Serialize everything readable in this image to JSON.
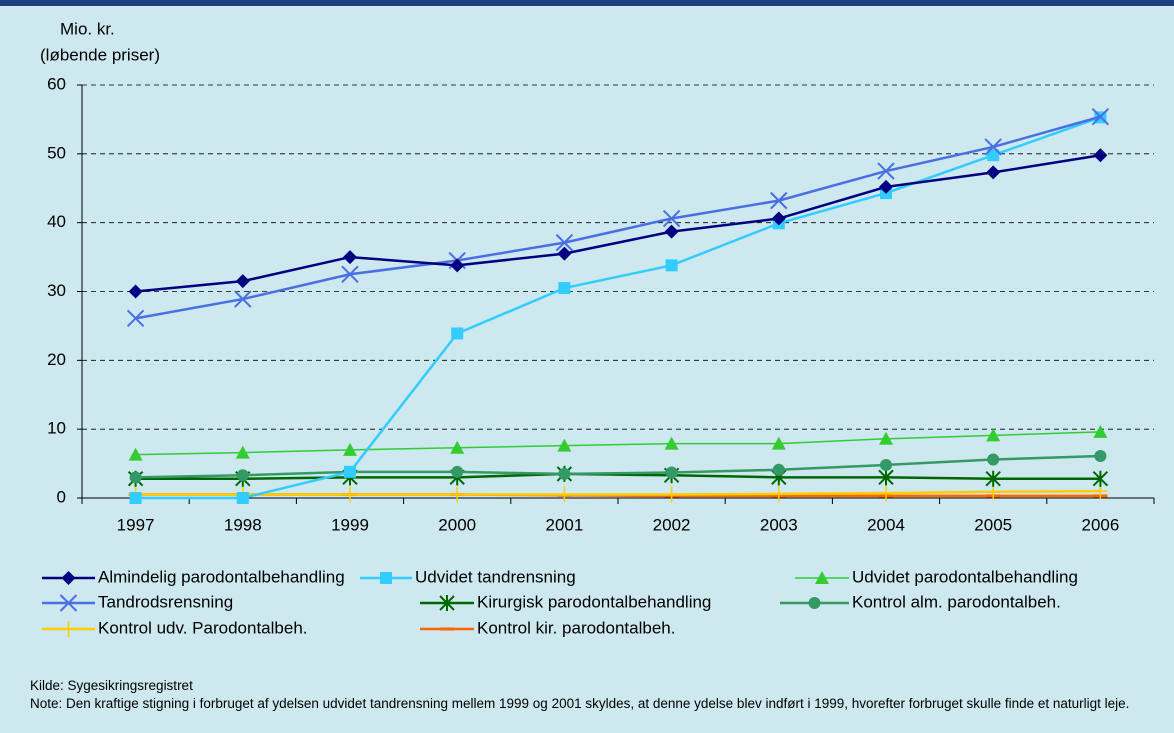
{
  "chart_data": {
    "type": "line",
    "ylabel": [
      "Mio. kr.",
      "(løbende priser)"
    ],
    "categories": [
      "1997",
      "1998",
      "1999",
      "2000",
      "2001",
      "2002",
      "2003",
      "2004",
      "2005",
      "2006"
    ],
    "ylim": [
      0,
      60
    ],
    "yticks": [
      0,
      10,
      20,
      30,
      40,
      50,
      60
    ],
    "grid": true,
    "series": [
      {
        "name": "Almindelig parodontalbehandling",
        "color": "#000080",
        "marker": "diamond",
        "values": [
          30,
          31.5,
          35,
          33.8,
          35.5,
          38.7,
          40.6,
          45.2,
          47.3,
          49.8
        ]
      },
      {
        "name": "Udvidet tandrensning",
        "color": "#33ccff",
        "marker": "square",
        "values": [
          0,
          0,
          3.8,
          23.9,
          30.5,
          33.8,
          39.9,
          44.3,
          49.8,
          55.3
        ]
      },
      {
        "name": "Udvidet parodontalbehandling",
        "color": "#33cc33",
        "marker": "triangle",
        "values": [
          6.3,
          6.6,
          7.0,
          7.3,
          7.6,
          7.9,
          7.9,
          8.6,
          9.1,
          9.6
        ]
      },
      {
        "name": "Tandrodsrensning",
        "color": "#4a6fe3",
        "marker": "x",
        "values": [
          26.1,
          28.9,
          32.5,
          34.5,
          37.1,
          40.6,
          43.2,
          47.5,
          51.0,
          55.4
        ]
      },
      {
        "name": "Kirurgisk parodontalbehandling",
        "color": "#006600",
        "marker": "star",
        "values": [
          2.8,
          2.8,
          3.0,
          3.0,
          3.5,
          3.3,
          3.0,
          3.0,
          2.8,
          2.8
        ]
      },
      {
        "name": "Kontrol alm. parodontalbeh.",
        "color": "#339966",
        "marker": "circle",
        "values": [
          3.0,
          3.3,
          3.8,
          3.8,
          3.5,
          3.7,
          4.1,
          4.8,
          5.6,
          6.1
        ]
      },
      {
        "name": "Kontrol udv. Parodontalbeh.",
        "color": "#ffcc00",
        "marker": "plus",
        "values": [
          0.5,
          0.5,
          0.5,
          0.5,
          0.5,
          0.5,
          0.6,
          0.7,
          0.9,
          1.0
        ]
      },
      {
        "name": "Kontrol kir. parodontalbeh.",
        "color": "#ff6600",
        "marker": "dash",
        "values": [
          0.5,
          0.5,
          0.5,
          0.5,
          0.4,
          0.3,
          0.3,
          0.3,
          0.3,
          0.3
        ]
      }
    ],
    "source": "Kilde: Sygesikringsregistret",
    "note": "Note: Den kraftige stigning i forbruget af ydelsen udvidet tandrensning mellem 1999 og 2001 skyldes, at denne ydelse blev indført i 1999, hvorefter forbruget skulle finde et naturligt leje."
  }
}
